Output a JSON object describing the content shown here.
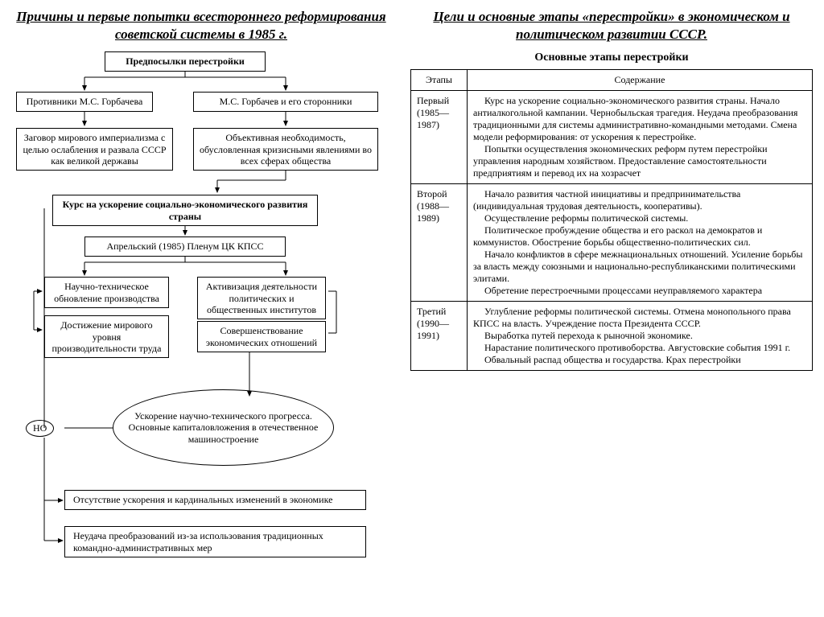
{
  "left": {
    "title": "Причины и первые попытки всестороннего реформирования советской системы в 1985 г.",
    "boxes": {
      "root": "Предпосылки перестройки",
      "opp": "Противники М.С. Горбачева",
      "sup": "М.С. Горбачев и его сторонники",
      "opp_desc": "Заговор мирового империализма с целью ослабления и развала СССР как великой державы",
      "sup_desc": "Объективная необходимость, обусловленная кризисными явлениями во всех сферах общества",
      "course": "Курс на ускорение социально-экономического развития страны",
      "plenum": "Апрельский (1985) Пленум ЦК КПСС",
      "l1": "Научно-техническое обновление производства",
      "l2": "Достижение мирового уровня производительности труда",
      "r1": "Активизация деятельности политических и общественных институтов",
      "r2": "Совершенствование экономических отношений",
      "ell": "Ускорение научно-технического прогресса. Основные капиталовложения в отечественное машиностроение",
      "no": "НО",
      "res1": "Отсутствие ускорения и кардинальных изменений в экономике",
      "res2": "Неудача преобразований из-за использования традиционных командно-административных мер"
    }
  },
  "right": {
    "title": "Цели и основные этапы «перестройки» в экономическом и политическом развитии СССР.",
    "table_title": "Основные этапы перестройки",
    "headers": {
      "stage": "Этапы",
      "content": "Содержание"
    },
    "rows": [
      {
        "stage": "Первый (1985—1987)",
        "paras": [
          "Курс на ускорение социально-экономического развития страны. Начало антиалкогольной кампании. Чернобыльская трагедия. Неудача преобразования традиционными для системы административно-командными методами. Смена модели реформирования: от ускорения к перестройке.",
          "Попытки осуществления экономических реформ путем перестройки управления народным хозяйством. Предоставление самостоятельности предприятиям и перевод их на хозрасчет"
        ]
      },
      {
        "stage": "Второй (1988—1989)",
        "paras": [
          "Начало развития частной инициативы и предпринимательства (индивидуальная трудовая деятельность, кооперативы).",
          "Осуществление реформы политической системы.",
          "Политическое пробуждение общества и его раскол на демократов и коммунистов. Обострение борьбы общественно-политических сил.",
          "Начало конфликтов в сфере межнациональных отношений. Усиление борьбы за власть между союзными и национально-республиканскими политическими элитами.",
          "Обретение перестроечными процессами неуправляемого характера"
        ]
      },
      {
        "stage": "Третий (1990—1991)",
        "paras": [
          "Углубление реформы политической системы. Отмена монопольного права КПСС на власть. Учреждение поста Президента СССР.",
          "Выработка путей перехода к рыночной экономике.",
          "Нарастание политического противоборства. Августовские события 1991 г.",
          "Обвальный распад общества и государства. Крах перестройки"
        ]
      }
    ]
  },
  "style": {
    "type": "flowchart+table",
    "background_color": "#ffffff",
    "text_color": "#000000",
    "border_color": "#000000",
    "font_family": "Times New Roman",
    "title_fontsize": 17,
    "box_fontsize": 12,
    "table_fontsize": 12,
    "arrow_stroke": "#000000",
    "arrow_width": 1
  }
}
